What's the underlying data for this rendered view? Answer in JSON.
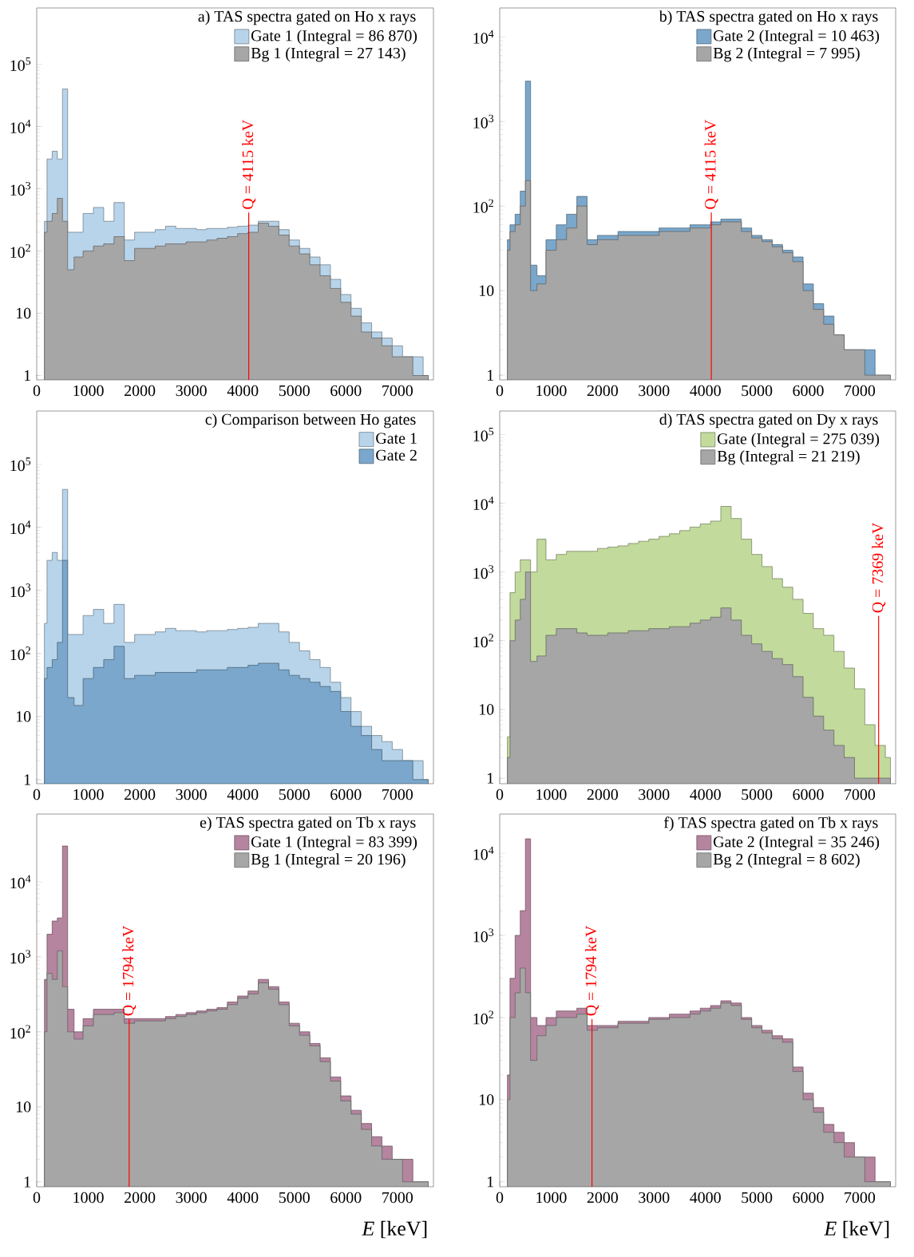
{
  "chart_data": [
    {
      "type": "area",
      "title": "a) TAS spectra gated on Ho x rays",
      "x": [
        150,
        250,
        350,
        450,
        550,
        650,
        800,
        1000,
        1200,
        1400,
        1600,
        1800,
        2000,
        2200,
        2400,
        2600,
        2800,
        3000,
        3200,
        3400,
        3600,
        3800,
        4000,
        4200,
        4400,
        4600,
        4800,
        5000,
        5200,
        5400,
        5600,
        5800,
        6000,
        6200,
        6400,
        6600,
        6800,
        7000,
        7200,
        7400,
        7600
      ],
      "series": [
        {
          "name": "Gate 1 (Integral = 86 870)",
          "color": "#b8d4ea",
          "values": [
            300,
            3000,
            4000,
            3000,
            40000,
            200,
            200,
            400,
            500,
            300,
            600,
            150,
            200,
            200,
            220,
            250,
            230,
            230,
            220,
            230,
            230,
            240,
            250,
            260,
            300,
            300,
            220,
            150,
            110,
            80,
            60,
            35,
            20,
            12,
            7,
            5,
            4,
            3,
            2,
            2,
            1
          ]
        },
        {
          "name": "Bg 1 (Integral = 27 143)",
          "color": "#a6a6a6",
          "values": [
            200,
            300,
            400,
            700,
            300,
            50,
            80,
            100,
            120,
            130,
            170,
            70,
            110,
            110,
            120,
            130,
            130,
            140,
            140,
            150,
            160,
            170,
            190,
            200,
            280,
            250,
            180,
            120,
            90,
            60,
            40,
            25,
            15,
            9,
            5,
            4,
            3,
            2,
            2,
            1,
            1
          ]
        }
      ],
      "xlim": [
        0,
        7700
      ],
      "ylim": [
        0.85,
        800000
      ],
      "xticks": [
        0,
        1000,
        2000,
        3000,
        4000,
        5000,
        6000,
        7000
      ],
      "yticks": [
        1,
        10,
        {
          "value": 100,
          "label": "10$^{2}$"
        },
        {
          "value": 1000,
          "label": "10$^{3}$"
        },
        {
          "value": 10000,
          "label": "10$^{4}$"
        },
        {
          "value": 100000,
          "label": "10$^{5}$"
        }
      ],
      "log": "y",
      "legend": "top right",
      "ref_lines": [
        {
          "axis": "x",
          "value": 4115,
          "label": "Q = 4115 keV",
          "color": "#ff0000"
        }
      ]
    },
    {
      "type": "area",
      "title": "b) TAS spectra gated on Ho x rays",
      "x": [
        150,
        250,
        350,
        450,
        550,
        650,
        800,
        1000,
        1200,
        1400,
        1600,
        1800,
        2000,
        2200,
        2400,
        2600,
        2800,
        3000,
        3200,
        3400,
        3600,
        3800,
        4000,
        4200,
        4400,
        4600,
        4800,
        5000,
        5200,
        5400,
        5600,
        5800,
        6000,
        6200,
        6400,
        6600,
        6800,
        7000,
        7200,
        7400,
        7600
      ],
      "series": [
        {
          "name": "Gate 2 (Integral = 10 463)",
          "color": "#7aa7cb",
          "values": [
            40,
            60,
            80,
            150,
            3000,
            20,
            15,
            40,
            60,
            80,
            130,
            40,
            45,
            45,
            50,
            50,
            50,
            50,
            55,
            55,
            55,
            60,
            60,
            65,
            70,
            70,
            55,
            45,
            40,
            35,
            30,
            25,
            12,
            7,
            5,
            3,
            2,
            2,
            2,
            1,
            1
          ]
        },
        {
          "name": "Bg 2 (Integral = 7 995)",
          "color": "#a6a6a6",
          "values": [
            30,
            50,
            60,
            100,
            200,
            10,
            12,
            30,
            40,
            55,
            100,
            35,
            40,
            40,
            45,
            45,
            45,
            45,
            50,
            50,
            50,
            55,
            55,
            60,
            65,
            65,
            50,
            42,
            38,
            33,
            28,
            22,
            10,
            6,
            4,
            3,
            2,
            2,
            1,
            1,
            1
          ]
        }
      ],
      "xlim": [
        0,
        7700
      ],
      "ylim": [
        0.88,
        22000
      ],
      "xticks": [
        0,
        1000,
        2000,
        3000,
        4000,
        5000,
        6000,
        7000
      ],
      "yticks": [
        1,
        10,
        {
          "value": 100,
          "label": "10$^{2}$"
        },
        {
          "value": 1000,
          "label": "10$^{3}$"
        },
        {
          "value": 10000,
          "label": "10$^{4}$"
        }
      ],
      "log": "y",
      "legend": "top right",
      "ref_lines": [
        {
          "axis": "x",
          "value": 4115,
          "label": "Q = 4115 keV",
          "color": "#ff0000"
        }
      ]
    },
    {
      "type": "area",
      "title": "c) Comparison between Ho gates",
      "x": [
        150,
        250,
        350,
        450,
        550,
        650,
        800,
        1000,
        1200,
        1400,
        1600,
        1800,
        2000,
        2200,
        2400,
        2600,
        2800,
        3000,
        3200,
        3400,
        3600,
        3800,
        4000,
        4200,
        4400,
        4600,
        4800,
        5000,
        5200,
        5400,
        5600,
        5800,
        6000,
        6200,
        6400,
        6600,
        6800,
        7000,
        7200,
        7400,
        7600
      ],
      "series": [
        {
          "name": "Gate 1",
          "color": "#b8d4ea",
          "values": [
            300,
            3000,
            4000,
            3000,
            40000,
            200,
            200,
            400,
            500,
            300,
            600,
            150,
            200,
            200,
            220,
            250,
            230,
            230,
            220,
            230,
            230,
            240,
            250,
            260,
            300,
            300,
            220,
            150,
            110,
            80,
            60,
            35,
            20,
            12,
            7,
            5,
            4,
            3,
            2,
            2,
            1
          ]
        },
        {
          "name": "Gate 2",
          "color": "#7aa7cb",
          "values": [
            40,
            60,
            80,
            150,
            3000,
            20,
            15,
            40,
            60,
            80,
            130,
            40,
            45,
            45,
            50,
            50,
            50,
            50,
            55,
            55,
            55,
            60,
            60,
            65,
            70,
            70,
            55,
            45,
            40,
            35,
            30,
            25,
            12,
            7,
            5,
            3,
            2,
            2,
            2,
            1,
            1
          ]
        }
      ],
      "xlim": [
        0,
        7700
      ],
      "ylim": [
        0.86,
        700000
      ],
      "xticks": [
        0,
        1000,
        2000,
        3000,
        4000,
        5000,
        6000,
        7000
      ],
      "yticks": [
        1,
        10,
        {
          "value": 100,
          "label": "10$^{2}$"
        },
        {
          "value": 1000,
          "label": "10$^{3}$"
        },
        {
          "value": 10000,
          "label": "10$^{4}$"
        },
        {
          "value": 100000,
          "label": "10$^{5}$"
        }
      ],
      "log": "y",
      "legend": "top right"
    },
    {
      "type": "area",
      "title": "d) TAS spectra gated on Dy x rays",
      "x": [
        150,
        250,
        350,
        450,
        550,
        650,
        800,
        1000,
        1200,
        1400,
        1600,
        1800,
        2000,
        2200,
        2400,
        2600,
        2800,
        3000,
        3200,
        3400,
        3600,
        3800,
        4000,
        4200,
        4400,
        4600,
        4800,
        5000,
        5200,
        5400,
        5600,
        5800,
        6000,
        6200,
        6400,
        6600,
        6800,
        7000,
        7200,
        7400,
        7600
      ],
      "series": [
        {
          "name": "Gate (Integral = 275 039)",
          "color": "#c2db9c",
          "values": [
            4,
            500,
            1000,
            1500,
            1500,
            1000,
            3000,
            1500,
            1800,
            2000,
            2000,
            2000,
            2200,
            2300,
            2400,
            2600,
            2800,
            3000,
            3300,
            3600,
            4000,
            4500,
            5000,
            5500,
            9000,
            6000,
            3000,
            1800,
            1200,
            800,
            600,
            400,
            250,
            150,
            120,
            70,
            40,
            20,
            6,
            3,
            2
          ]
        },
        {
          "name": "Bg (Integral = 21 219)",
          "color": "#a6a6a6",
          "values": [
            2,
            100,
            200,
            400,
            1000,
            50,
            60,
            120,
            150,
            150,
            130,
            120,
            120,
            130,
            130,
            140,
            140,
            150,
            150,
            160,
            160,
            180,
            200,
            220,
            300,
            200,
            120,
            90,
            70,
            55,
            45,
            30,
            15,
            8,
            5,
            3,
            2,
            1,
            1,
            1,
            1
          ]
        }
      ],
      "xlim": [
        0,
        7700
      ],
      "ylim": [
        0.83,
        220000
      ],
      "xticks": [
        0,
        1000,
        2000,
        3000,
        4000,
        5000,
        6000,
        7000
      ],
      "yticks": [
        1,
        10,
        {
          "value": 100,
          "label": "10$^{2}$"
        },
        {
          "value": 1000,
          "label": "10$^{3}$"
        },
        {
          "value": 10000,
          "label": "10$^{4}$"
        },
        {
          "value": 100000,
          "label": "10$^{5}$"
        }
      ],
      "log": "y",
      "legend": "top right",
      "ref_lines": [
        {
          "axis": "x",
          "value": 7369,
          "label": "Q = 7369 keV",
          "color": "#ff0000"
        }
      ]
    },
    {
      "type": "area",
      "title": "e) TAS spectra gated on Tb x rays",
      "x": [
        150,
        250,
        350,
        450,
        550,
        650,
        800,
        1000,
        1200,
        1400,
        1600,
        1800,
        2000,
        2200,
        2400,
        2600,
        2800,
        3000,
        3200,
        3400,
        3600,
        3800,
        4000,
        4200,
        4400,
        4600,
        4800,
        5000,
        5200,
        5400,
        5600,
        5800,
        6000,
        6200,
        6400,
        6600,
        6800,
        7000,
        7200,
        7400,
        7600
      ],
      "series": [
        {
          "name": "Gate 1 (Integral = 83 399)",
          "color": "#b5849f",
          "values": [
            500,
            2000,
            3000,
            3300,
            30000,
            200,
            100,
            150,
            200,
            200,
            200,
            150,
            150,
            150,
            150,
            160,
            170,
            180,
            190,
            200,
            210,
            250,
            300,
            350,
            500,
            400,
            250,
            130,
            100,
            70,
            45,
            25,
            14,
            9,
            6,
            4,
            3,
            2,
            2,
            1,
            1
          ]
        },
        {
          "name": "Bg 1 (Integral = 20 196)",
          "color": "#a6a6a6",
          "values": [
            100,
            600,
            500,
            1200,
            400,
            100,
            80,
            120,
            170,
            170,
            180,
            130,
            140,
            140,
            140,
            150,
            160,
            170,
            180,
            190,
            200,
            230,
            280,
            320,
            450,
            370,
            230,
            120,
            90,
            65,
            40,
            22,
            12,
            8,
            5,
            3,
            2,
            2,
            1,
            1,
            1
          ]
        }
      ],
      "xlim": [
        0,
        7700
      ],
      "ylim": [
        0.86,
        80000
      ],
      "xticks": [
        0,
        1000,
        2000,
        3000,
        4000,
        5000,
        6000,
        7000
      ],
      "yticks": [
        1,
        10,
        {
          "value": 100,
          "label": "10$^{2}$"
        },
        {
          "value": 1000,
          "label": "10$^{3}$"
        },
        {
          "value": 10000,
          "label": "10$^{4}$"
        }
      ],
      "log": "y",
      "legend": "top right",
      "xlabel": "*E* [keV]",
      "ref_lines": [
        {
          "axis": "x",
          "value": 1794,
          "label": "Q = 1794 keV",
          "color": "#ff0000"
        }
      ]
    },
    {
      "type": "area",
      "title": "f) TAS spectra gated on Tb x rays",
      "x": [
        150,
        250,
        350,
        450,
        550,
        650,
        800,
        1000,
        1200,
        1400,
        1600,
        1800,
        2000,
        2200,
        2400,
        2600,
        2800,
        3000,
        3200,
        3400,
        3600,
        3800,
        4000,
        4200,
        4400,
        4600,
        4800,
        5000,
        5200,
        5400,
        5600,
        5800,
        6000,
        6200,
        6400,
        6600,
        6800,
        7000,
        7200,
        7400,
        7600
      ],
      "series": [
        {
          "name": "Gate 2 (Integral = 35 246)",
          "color": "#b5849f",
          "values": [
            20,
            300,
            1000,
            2000,
            15000,
            100,
            80,
            100,
            120,
            120,
            130,
            80,
            80,
            80,
            90,
            90,
            90,
            100,
            100,
            110,
            110,
            120,
            130,
            140,
            160,
            150,
            100,
            80,
            70,
            60,
            55,
            25,
            12,
            8,
            5,
            4,
            3,
            2,
            2,
            1,
            1
          ]
        },
        {
          "name": "Bg 2 (Integral = 8 602)",
          "color": "#a6a6a6",
          "values": [
            10,
            100,
            200,
            400,
            200,
            30,
            60,
            80,
            100,
            100,
            110,
            70,
            75,
            75,
            85,
            85,
            85,
            95,
            95,
            100,
            100,
            110,
            120,
            130,
            150,
            140,
            95,
            75,
            65,
            55,
            50,
            22,
            10,
            7,
            4,
            3,
            2,
            2,
            1,
            1,
            1
          ]
        }
      ],
      "xlim": [
        0,
        7700
      ],
      "ylim": [
        0.87,
        30000
      ],
      "xticks": [
        0,
        1000,
        2000,
        3000,
        4000,
        5000,
        6000,
        7000
      ],
      "yticks": [
        1,
        10,
        {
          "value": 100,
          "label": "10$^{2}$"
        },
        {
          "value": 1000,
          "label": "10$^{3}$"
        },
        {
          "value": 10000,
          "label": "10$^{4}$"
        }
      ],
      "log": "y",
      "legend": "top right",
      "xlabel": "*E* [keV]",
      "ref_lines": [
        {
          "axis": "x",
          "value": 1794,
          "label": "Q = 1794 keV",
          "color": "#ff0000"
        }
      ]
    }
  ]
}
